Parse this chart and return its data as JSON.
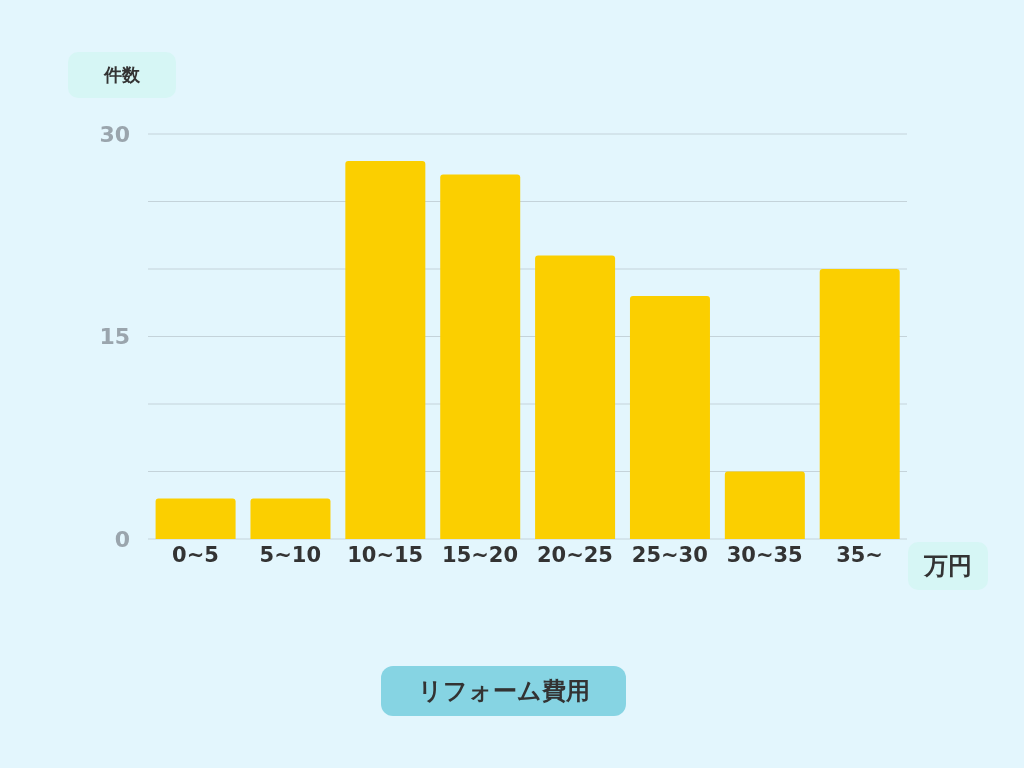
{
  "chart_data": {
    "type": "bar",
    "xlabel": "リフォーム費用",
    "ylabel": "件数",
    "annotations": [
      "万円"
    ],
    "categories": [
      "0~5",
      "5~10",
      "10~15",
      "15~20",
      "20~25",
      "25~30",
      "30~35",
      "35~"
    ],
    "values": [
      3,
      3,
      28,
      27,
      21,
      18,
      5,
      20
    ],
    "color": "#fbcf00",
    "ylim": [
      0,
      30
    ],
    "yticks": [
      0,
      {
        "value": 5,
        "label": null
      },
      {
        "value": 10,
        "label": null
      },
      15,
      {
        "value": 20,
        "label": null
      },
      {
        "value": 25,
        "label": null
      },
      30
    ],
    "grid": "y",
    "legend": false
  }
}
